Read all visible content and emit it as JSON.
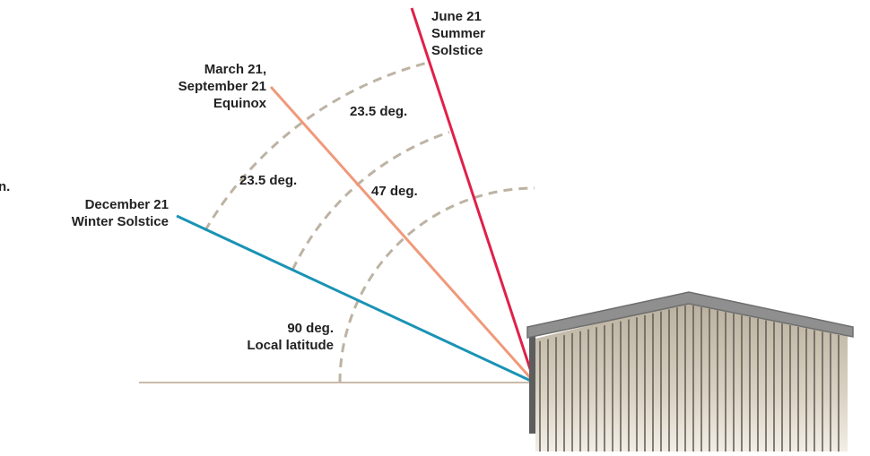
{
  "diagram": {
    "cropped_text": "n.",
    "rays": [
      {
        "id": "summer",
        "lines": [
          "June 21",
          "Summer",
          "Solstice"
        ],
        "color": "#e0204a"
      },
      {
        "id": "equinox",
        "lines": [
          "March 21,",
          "September 21",
          "Equinox"
        ],
        "color": "#f0997a"
      },
      {
        "id": "winter",
        "lines": [
          "December 21",
          "Winter Solstice"
        ],
        "color": "#1a93b5"
      }
    ],
    "angle_labels": {
      "summer_gap": "23.5 deg.",
      "winter_gap": "23.5 deg.",
      "total": "47 deg.",
      "latitude_angle": "90 deg.",
      "latitude_name": "Local latitude"
    },
    "colors": {
      "ground": "#c9bba9",
      "arc": "#bdb3a3",
      "roof": "#8f8f8f",
      "wall_fill": "#d2c9b8",
      "wall_stripe": "#66605a"
    }
  }
}
